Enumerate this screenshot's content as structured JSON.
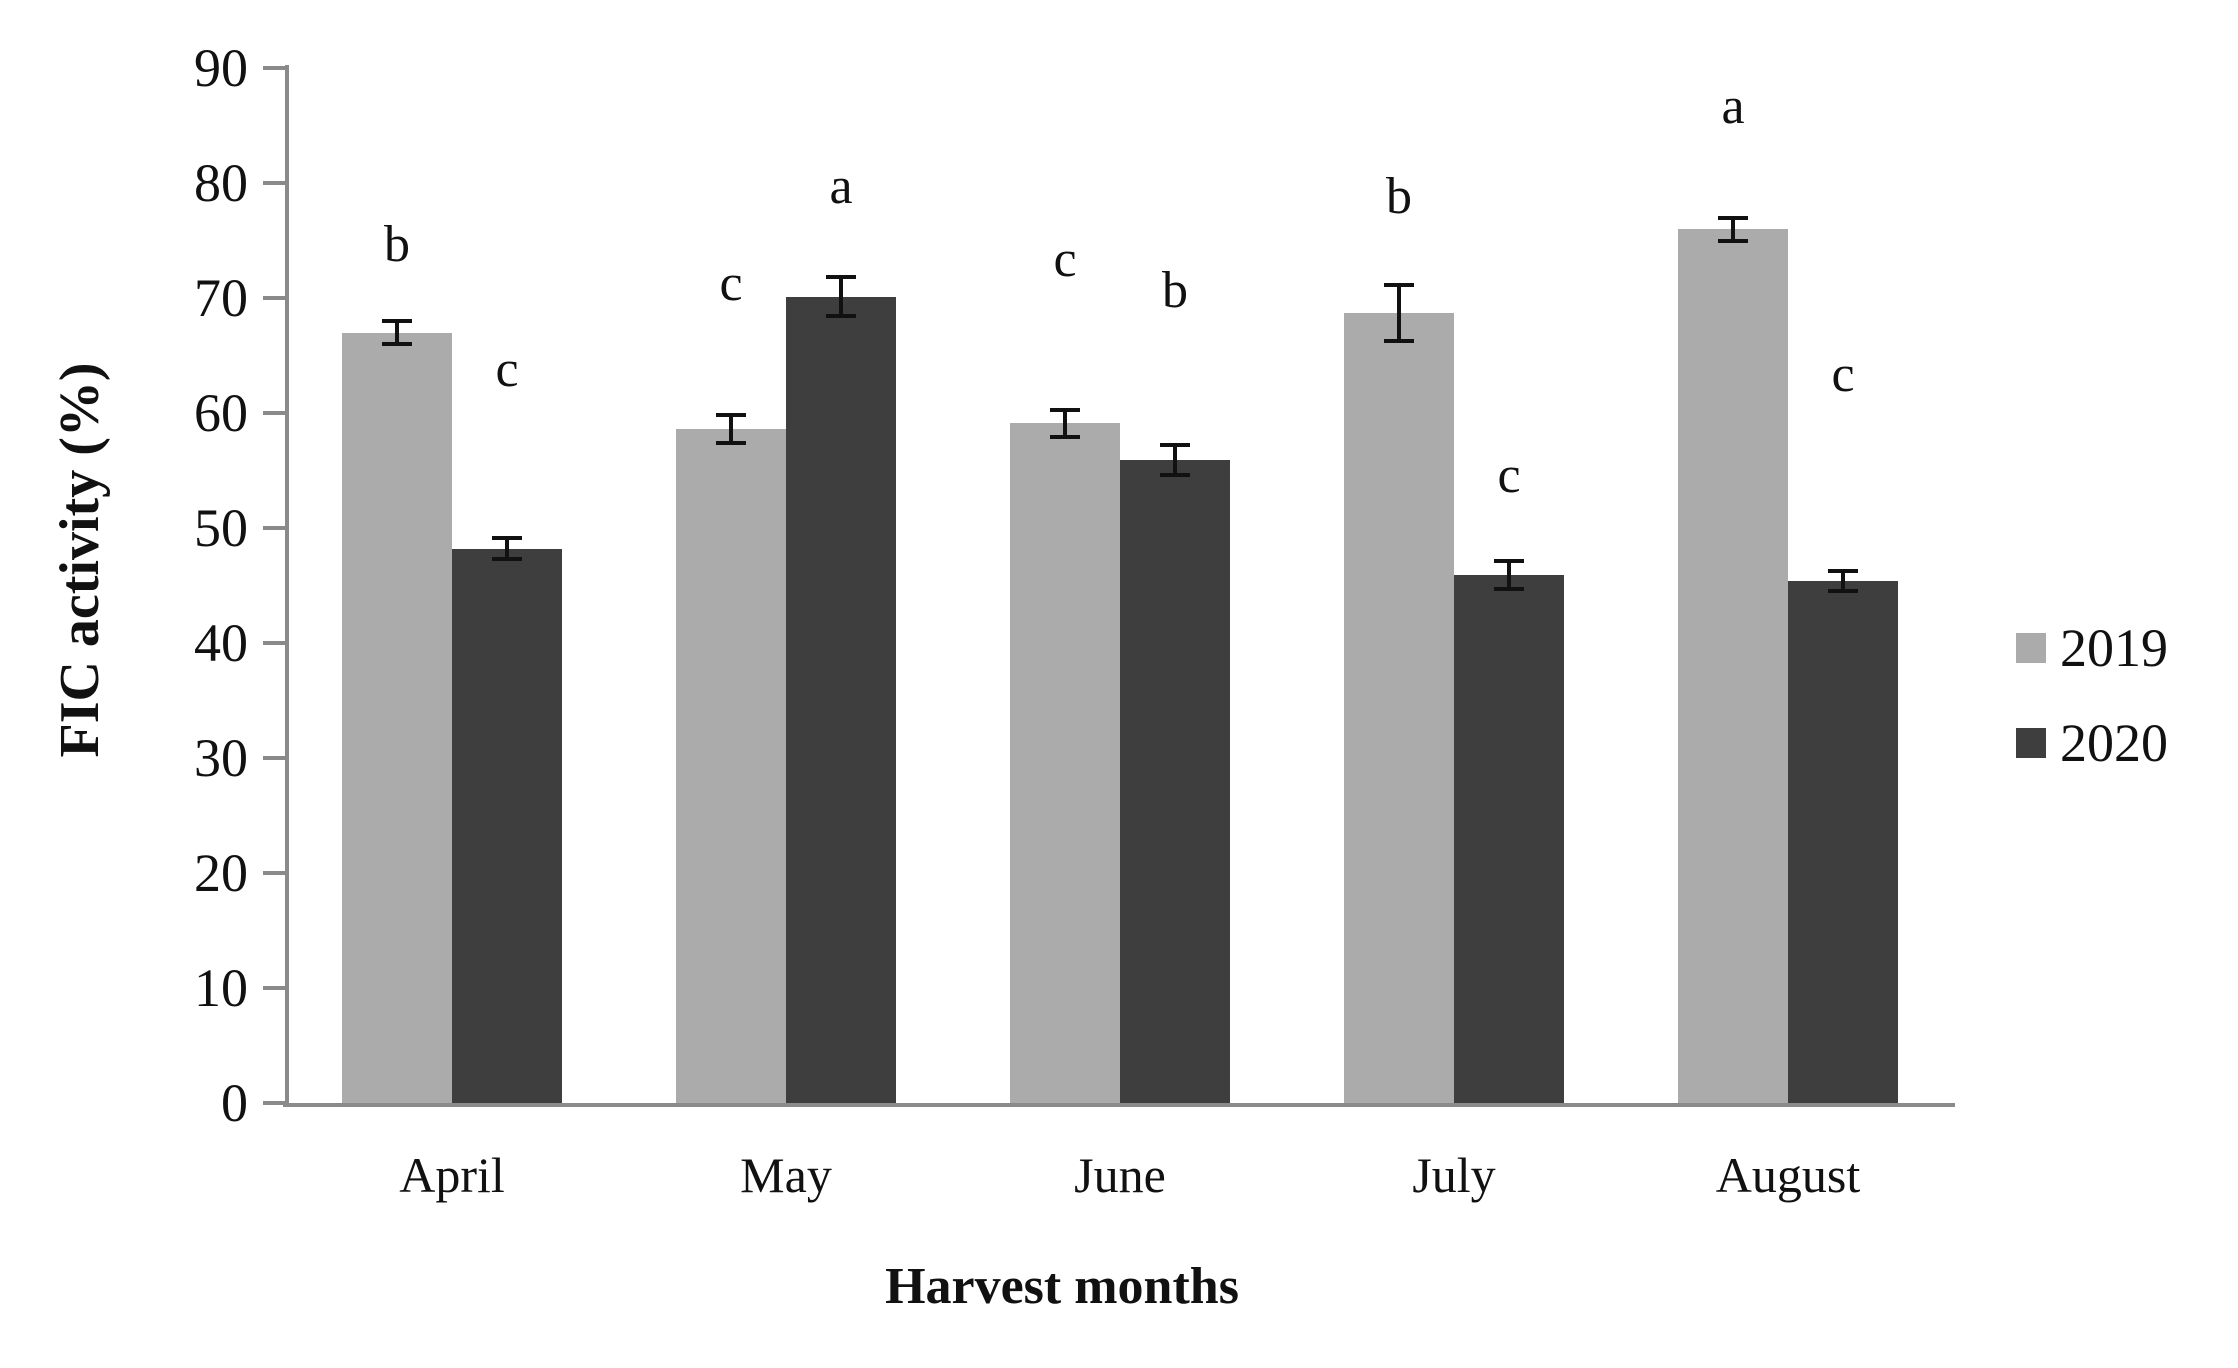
{
  "chart_data": {
    "type": "bar",
    "title": "",
    "xlabel": "Harvest months",
    "ylabel": "FIC activity (%)",
    "categories": [
      "April",
      "May",
      "June",
      "July",
      "August"
    ],
    "series": [
      {
        "name": "2019",
        "color": "#ababab",
        "values": [
          67.0,
          58.6,
          59.1,
          68.7,
          76.0
        ],
        "errors": [
          1.0,
          1.2,
          1.2,
          2.4,
          1.0
        ],
        "sig_letters": [
          "b",
          "c",
          "c",
          "b",
          "a"
        ]
      },
      {
        "name": "2020",
        "color": "#3e3e3e",
        "values": [
          48.2,
          70.1,
          55.9,
          45.9,
          45.4
        ],
        "errors": [
          0.9,
          1.7,
          1.3,
          1.2,
          0.9
        ],
        "sig_letters": [
          "c",
          "a",
          "b",
          "c",
          "c"
        ]
      }
    ],
    "ylim": [
      0,
      90
    ],
    "ytick_step": 10,
    "yticks": [
      0,
      10,
      20,
      30,
      40,
      50,
      60,
      70,
      80,
      90
    ],
    "grid": false,
    "error_bars": true,
    "legend_position": "right",
    "axis_color": "#8a8a8a",
    "text_color": "#111111"
  }
}
